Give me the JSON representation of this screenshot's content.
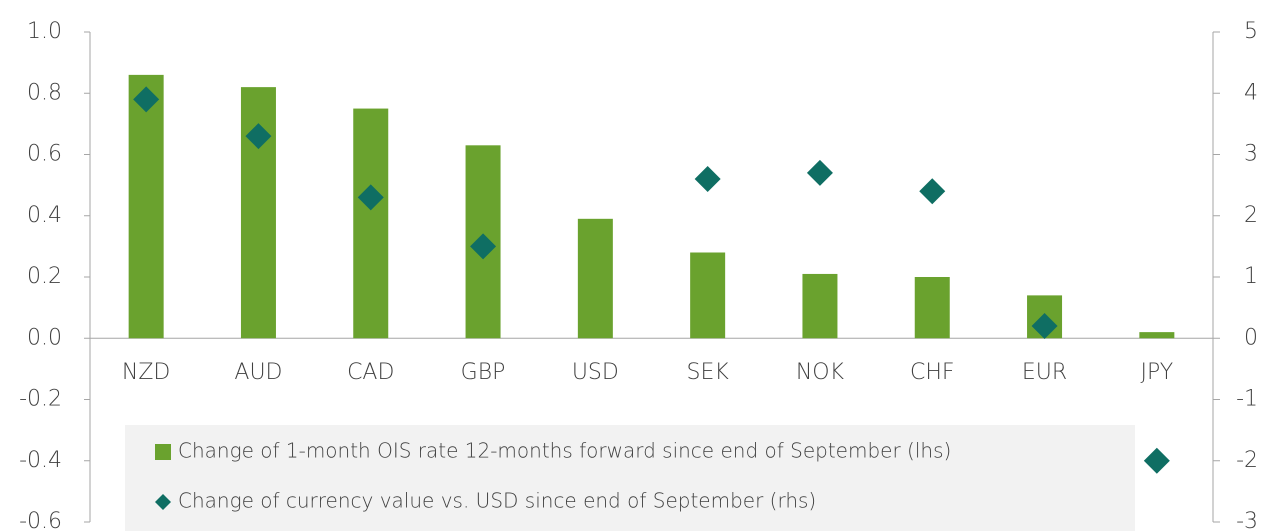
{
  "chart_data": {
    "type": "bar",
    "categories": [
      "NZD",
      "AUD",
      "CAD",
      "GBP",
      "USD",
      "SEK",
      "NOK",
      "CHF",
      "EUR",
      "JPY"
    ],
    "series": [
      {
        "name": "Change of 1-month OIS rate 12-months forward since end of September (lhs)",
        "type": "bar",
        "color": "#6aa22e",
        "values": [
          0.86,
          0.82,
          0.75,
          0.63,
          0.39,
          0.28,
          0.21,
          0.2,
          0.14,
          0.02
        ]
      },
      {
        "name": "Change of currency value vs. USD since end of September (rhs)",
        "type": "scatter",
        "axis": "y2",
        "color": "#0f6e63",
        "values": [
          3.9,
          3.3,
          2.3,
          1.5,
          null,
          2.6,
          2.7,
          2.4,
          0.2,
          -2.0
        ]
      }
    ],
    "ylim": [
      -0.6,
      1.0
    ],
    "yticks": [
      {
        "value": -0.6,
        "label": "-0.6"
      },
      -0.4,
      -0.2,
      {
        "value": 0,
        "label": "0.0"
      },
      0.2,
      0.4,
      0.6,
      0.8,
      {
        "value": 1.0,
        "label": "1.0"
      }
    ],
    "y2lim": [
      -3,
      5
    ],
    "y2ticks": [
      -3,
      -2,
      -1,
      0,
      1,
      2,
      3,
      4,
      5
    ],
    "legend": "bottom"
  }
}
